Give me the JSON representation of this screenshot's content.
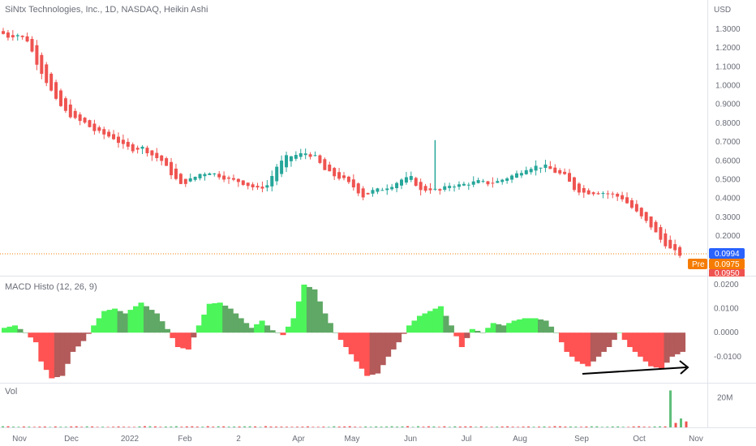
{
  "header": {
    "title": "SiNtx Technologies, Inc., 1D, NASDAQ, Heikin Ashi",
    "currency": "USD"
  },
  "colors": {
    "bull": "#26a69a",
    "bear": "#ef5350",
    "macd_pos_strong": "#4cf55a",
    "macd_pos_weak": "#5fa865",
    "macd_neg_strong": "#ff5252",
    "macd_neg_weak": "#b35a5a",
    "vol_up": "#5fbf7a",
    "vol_down": "#ef5350",
    "last_price_bg": "#2962ff",
    "pre_bg": "#f57c00",
    "low_tag_bg": "#ef5350",
    "separator": "#e0e3eb",
    "arrow": "#000000"
  },
  "price_tags": {
    "last": "0.0994",
    "pre_label": "Pre",
    "pre": "0.0975",
    "low": "0.0950"
  },
  "x_axis": {
    "labels": [
      "Nov",
      "Dec",
      "2022",
      "Feb",
      "2",
      "Apr",
      "May",
      "Jun",
      "Jul",
      "Aug",
      "Sep",
      "Oct",
      "Nov"
    ]
  },
  "panes": {
    "macd_title": "MACD Histo (12, 26, 9)",
    "vol_title": "Vol"
  },
  "chart_data": [
    {
      "type": "candlestick",
      "title": "SiNtx Technologies, Inc., 1D, NASDAQ, Heikin Ashi",
      "y_ticks": [
        "1.3000",
        "1.2000",
        "1.1000",
        "1.0000",
        "0.9000",
        "0.8000",
        "0.7000",
        "0.6000",
        "0.5000",
        "0.4000",
        "0.3000",
        "0.2000"
      ],
      "ylim": [
        0.09,
        1.34
      ],
      "x_categories": [
        "Nov",
        "Dec",
        "2022",
        "Feb",
        "2",
        "Apr",
        "May",
        "Jun",
        "Jul",
        "Aug",
        "Sep",
        "Oct",
        "Nov"
      ],
      "close_path": [
        [
          0,
          1.29
        ],
        [
          2,
          1.26
        ],
        [
          4,
          1.27
        ],
        [
          6,
          1.24
        ],
        [
          8,
          1.12
        ],
        [
          10,
          1.02
        ],
        [
          12,
          0.92
        ],
        [
          14,
          0.86
        ],
        [
          16,
          0.82
        ],
        [
          18,
          0.8
        ],
        [
          20,
          0.76
        ],
        [
          22,
          0.74
        ],
        [
          24,
          0.72
        ],
        [
          26,
          0.68
        ],
        [
          28,
          0.66
        ],
        [
          30,
          0.67
        ],
        [
          32,
          0.63
        ],
        [
          34,
          0.6
        ],
        [
          36,
          0.53
        ],
        [
          38,
          0.47
        ],
        [
          40,
          0.5
        ],
        [
          42,
          0.53
        ],
        [
          44,
          0.54
        ],
        [
          46,
          0.52
        ],
        [
          48,
          0.5
        ],
        [
          50,
          0.49
        ],
        [
          52,
          0.47
        ],
        [
          54,
          0.45
        ],
        [
          56,
          0.47
        ],
        [
          58,
          0.57
        ],
        [
          60,
          0.62
        ],
        [
          62,
          0.63
        ],
        [
          64,
          0.64
        ],
        [
          66,
          0.62
        ],
        [
          68,
          0.55
        ],
        [
          70,
          0.52
        ],
        [
          72,
          0.5
        ],
        [
          74,
          0.46
        ],
        [
          76,
          0.41
        ],
        [
          78,
          0.44
        ],
        [
          80,
          0.45
        ],
        [
          82,
          0.47
        ],
        [
          84,
          0.5
        ],
        [
          86,
          0.51
        ],
        [
          88,
          0.44
        ],
        [
          90,
          0.45
        ],
        [
          92,
          0.44
        ],
        [
          94,
          0.47
        ],
        [
          96,
          0.47
        ],
        [
          98,
          0.48
        ],
        [
          100,
          0.49
        ],
        [
          102,
          0.48
        ],
        [
          104,
          0.49
        ],
        [
          106,
          0.51
        ],
        [
          108,
          0.53
        ],
        [
          110,
          0.56
        ],
        [
          112,
          0.57
        ],
        [
          114,
          0.57
        ],
        [
          116,
          0.54
        ],
        [
          118,
          0.52
        ],
        [
          120,
          0.45
        ],
        [
          122,
          0.43
        ],
        [
          124,
          0.43
        ],
        [
          126,
          0.43
        ],
        [
          128,
          0.42
        ],
        [
          130,
          0.4
        ],
        [
          132,
          0.35
        ],
        [
          134,
          0.3
        ],
        [
          136,
          0.25
        ],
        [
          138,
          0.18
        ],
        [
          140,
          0.13
        ],
        [
          142,
          0.1
        ]
      ],
      "spike": {
        "x": 90,
        "high": 0.71
      }
    },
    {
      "type": "bar",
      "title": "MACD Histo (12, 26, 9)",
      "y_ticks": [
        "0.0200",
        "0.0100",
        "0.0000",
        "-0.0100"
      ],
      "ylim": [
        -0.0195,
        0.021
      ],
      "curve": [
        [
          0,
          0.002
        ],
        [
          2,
          0.003
        ],
        [
          4,
          0.0
        ],
        [
          6,
          -0.004
        ],
        [
          7,
          -0.012
        ],
        [
          9,
          -0.019
        ],
        [
          11,
          -0.018
        ],
        [
          13,
          -0.008
        ],
        [
          15,
          -0.0035
        ],
        [
          16,
          -0.0005
        ],
        [
          17,
          0.003
        ],
        [
          19,
          0.009
        ],
        [
          21,
          0.01
        ],
        [
          23,
          0.008
        ],
        [
          26,
          0.0125
        ],
        [
          29,
          0.008
        ],
        [
          31,
          0.0015
        ],
        [
          33,
          -0.006
        ],
        [
          35,
          -0.007
        ],
        [
          37,
          0.003
        ],
        [
          39,
          0.012
        ],
        [
          41,
          0.0125
        ],
        [
          43,
          0.01
        ],
        [
          45,
          0.006
        ],
        [
          47,
          0.002
        ],
        [
          49,
          0.005
        ],
        [
          51,
          0.001
        ],
        [
          53,
          -0.001
        ],
        [
          55,
          0.006
        ],
        [
          57,
          0.02
        ],
        [
          59,
          0.018
        ],
        [
          61,
          0.008
        ],
        [
          63,
          0.0
        ],
        [
          65,
          -0.006
        ],
        [
          67,
          -0.012
        ],
        [
          69,
          -0.018
        ],
        [
          71,
          -0.017
        ],
        [
          73,
          -0.01
        ],
        [
          75,
          -0.004
        ],
        [
          77,
          0.003
        ],
        [
          79,
          0.007
        ],
        [
          81,
          0.009
        ],
        [
          83,
          0.011
        ],
        [
          85,
          0.003
        ],
        [
          87,
          -0.006
        ],
        [
          89,
          0.0015
        ],
        [
          91,
          0.0
        ],
        [
          93,
          0.004
        ],
        [
          95,
          0.003
        ],
        [
          97,
          0.005
        ],
        [
          99,
          0.006
        ],
        [
          101,
          0.006
        ],
        [
          103,
          0.005
        ],
        [
          105,
          0.0
        ],
        [
          107,
          -0.008
        ],
        [
          109,
          -0.012
        ],
        [
          111,
          -0.014
        ],
        [
          113,
          -0.01
        ],
        [
          115,
          -0.006
        ],
        [
          117,
          0.0
        ],
        [
          119,
          -0.006
        ],
        [
          121,
          -0.01
        ],
        [
          123,
          -0.014
        ],
        [
          125,
          -0.015
        ],
        [
          127,
          -0.01
        ],
        [
          129,
          -0.008
        ]
      ]
    },
    {
      "type": "bar",
      "title": "Vol",
      "y_ticks": [
        "20M"
      ],
      "ylim": [
        0,
        28
      ],
      "spikes": [
        [
          127,
          25
        ],
        [
          128,
          3
        ],
        [
          129,
          6
        ],
        [
          130,
          4
        ],
        [
          131,
          2
        ]
      ]
    }
  ]
}
